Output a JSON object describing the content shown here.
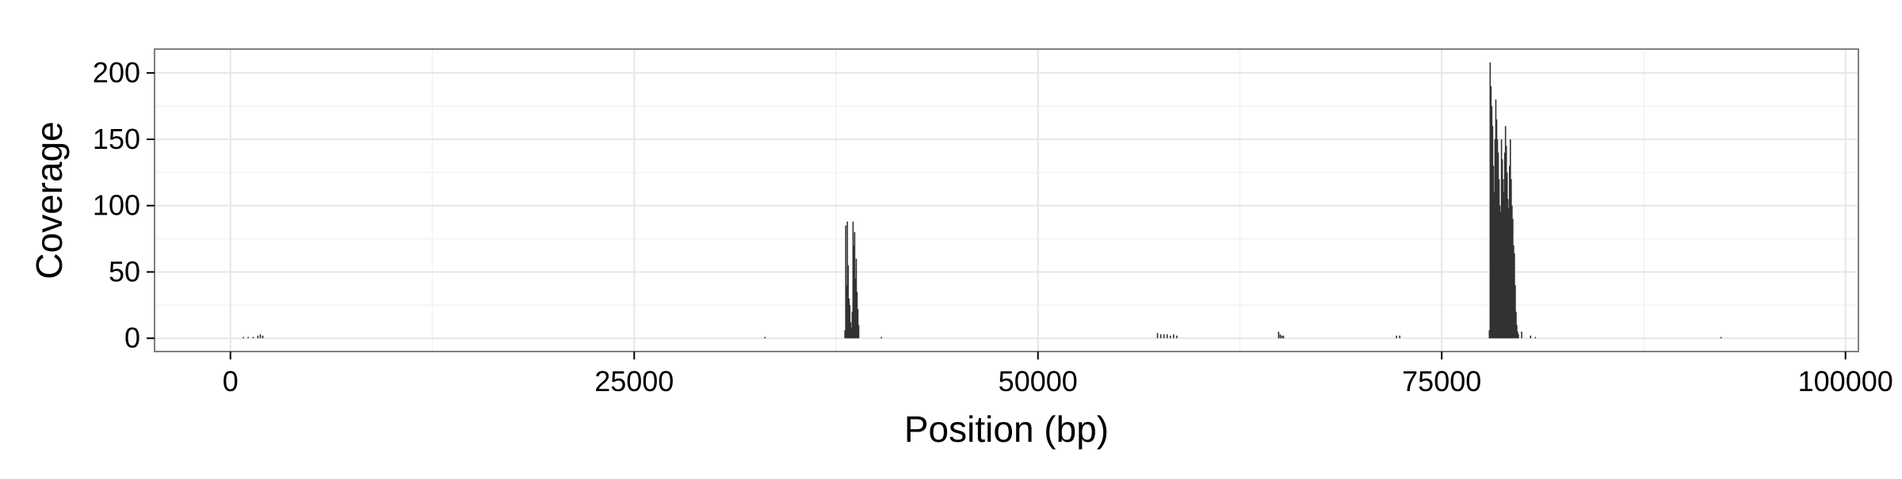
{
  "chart_data": {
    "type": "bar",
    "title": "",
    "xlabel": "Position (bp)",
    "ylabel": "Coverage",
    "xlim": [
      -4700,
      100800
    ],
    "ylim": [
      -10,
      218
    ],
    "x_ticks": [
      0,
      25000,
      50000,
      75000,
      100000
    ],
    "x_tick_labels": [
      "0",
      "25000",
      "50000",
      "75000",
      "100000"
    ],
    "y_ticks": [
      0,
      50,
      100,
      150,
      200
    ],
    "y_tick_labels": [
      "0",
      "50",
      "100",
      "150",
      "200"
    ],
    "grid": true,
    "legend": "none",
    "colors": {
      "bar": "#333333",
      "panel_background": "#ffffff",
      "grid_major": "#e6e6e6",
      "grid_minor": "#f2f2f2",
      "border": "#7f7f7f"
    },
    "series": [
      {
        "x": [
          800,
          1100,
          1400,
          1700,
          1850,
          2000,
          33100,
          40300,
          38050,
          38100,
          38150,
          38200,
          38250,
          38300,
          38350,
          38400,
          38450,
          38500,
          38550,
          38600,
          38650,
          38700,
          38750,
          38800,
          38850,
          38900,
          57400,
          57600,
          57800,
          58000,
          58200,
          58400,
          58600,
          64900,
          65000,
          65100,
          65200,
          72200,
          72400,
          92300,
          80500,
          80800,
          77950,
          78000,
          78050,
          78100,
          78150,
          78200,
          78250,
          78300,
          78350,
          78400,
          78450,
          78500,
          78550,
          78600,
          78650,
          78700,
          78750,
          78800,
          78850,
          78900,
          78950,
          79000,
          79050,
          79100,
          79150,
          79200,
          79250,
          79300,
          79350,
          79400,
          79450,
          79500,
          79550,
          79600,
          79650,
          79700,
          79750,
          79950
        ],
        "y": [
          1,
          1,
          1,
          2,
          3,
          2,
          1,
          1,
          6,
          85,
          40,
          88,
          55,
          30,
          25,
          12,
          8,
          20,
          88,
          70,
          80,
          45,
          60,
          35,
          22,
          10,
          4,
          3,
          3,
          3,
          2,
          3,
          2,
          5,
          3,
          2,
          2,
          2,
          2,
          1,
          2,
          1,
          6,
          208,
          190,
          175,
          160,
          130,
          110,
          150,
          180,
          165,
          150,
          140,
          120,
          100,
          95,
          150,
          135,
          120,
          110,
          140,
          160,
          145,
          125,
          105,
          98,
          130,
          150,
          120,
          100,
          90,
          70,
          64,
          40,
          20,
          10,
          5,
          3,
          5
        ]
      }
    ]
  }
}
